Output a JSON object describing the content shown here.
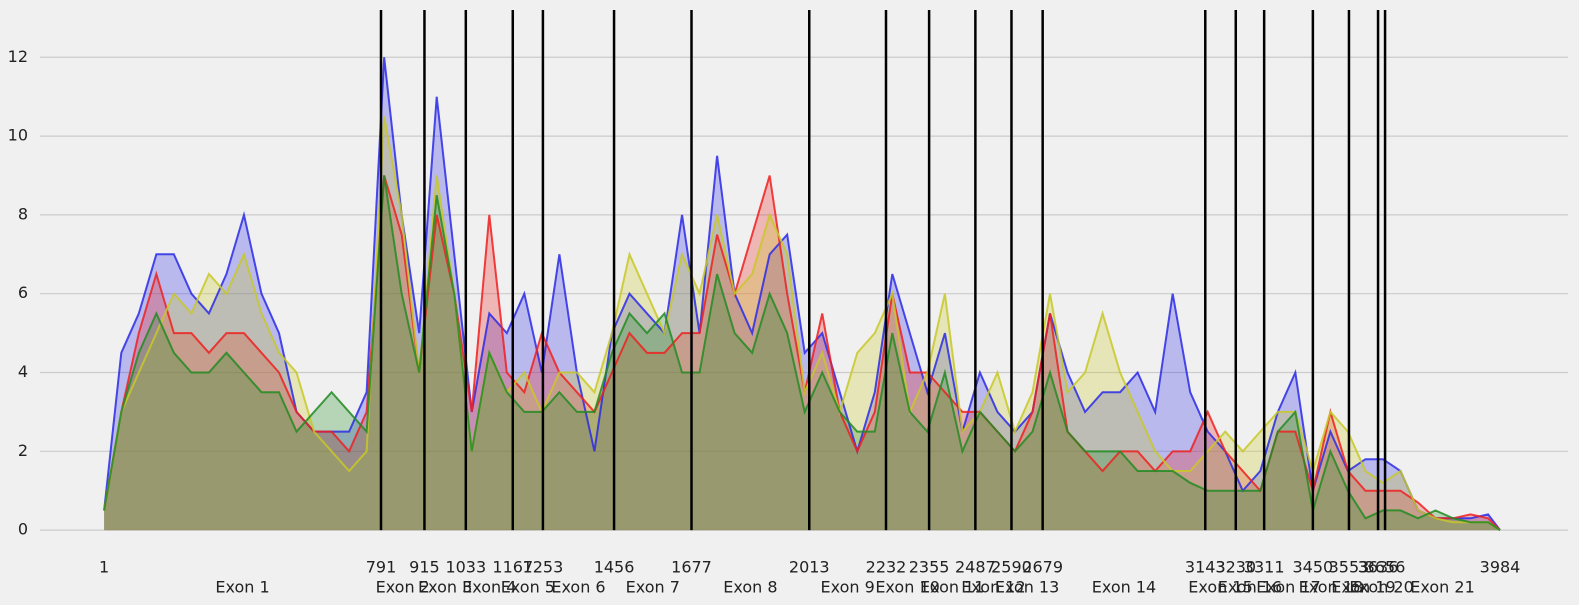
{
  "chart_data": {
    "type": "area",
    "x": [
      1,
      50,
      100,
      150,
      200,
      250,
      300,
      350,
      400,
      450,
      500,
      550,
      600,
      650,
      700,
      750,
      800,
      850,
      900,
      950,
      1000,
      1050,
      1100,
      1150,
      1200,
      1250,
      1300,
      1350,
      1400,
      1450,
      1500,
      1550,
      1600,
      1650,
      1700,
      1750,
      1800,
      1850,
      1900,
      1950,
      2000,
      2050,
      2100,
      2150,
      2200,
      2250,
      2300,
      2350,
      2400,
      2450,
      2500,
      2550,
      2600,
      2650,
      2700,
      2750,
      2800,
      2850,
      2900,
      2950,
      3000,
      3050,
      3100,
      3150,
      3200,
      3250,
      3300,
      3350,
      3400,
      3450,
      3500,
      3550,
      3600,
      3650,
      3700,
      3750,
      3800,
      3850,
      3900,
      3950,
      3984
    ],
    "series": [
      {
        "color": "#2a2ae8",
        "values": [
          0.5,
          4.5,
          5.5,
          7,
          7,
          6,
          5.5,
          6.5,
          8,
          6,
          5,
          3,
          2.5,
          2.5,
          2.5,
          3.5,
          12,
          8,
          5,
          11,
          7,
          3,
          5.5,
          5,
          6,
          4,
          7,
          4,
          2,
          5,
          6,
          5.5,
          5,
          8,
          5,
          9.5,
          6,
          5,
          7,
          7.5,
          4.5,
          5,
          3.5,
          2,
          3.5,
          6.5,
          5,
          3.5,
          5,
          2.5,
          4,
          3,
          2.5,
          3,
          5.5,
          4,
          3,
          3.5,
          3.5,
          4,
          3,
          6,
          3.5,
          2.5,
          2,
          1,
          1.5,
          3,
          4,
          1,
          2.5,
          1.5,
          1.8,
          1.8,
          1.5,
          0.5,
          0.3,
          0.3,
          0.3,
          0.4,
          0
        ]
      },
      {
        "color": "#ee2020",
        "values": [
          0.5,
          3,
          5,
          6.5,
          5,
          5,
          4.5,
          5,
          5,
          4.5,
          4,
          3,
          2.5,
          2.5,
          2,
          3,
          9,
          7.5,
          4,
          8,
          6,
          3,
          8,
          4,
          3.5,
          5,
          4,
          3.5,
          3,
          4,
          5,
          4.5,
          4.5,
          5,
          5,
          7.5,
          6,
          7.5,
          9,
          6,
          3.5,
          5.5,
          3,
          2,
          3,
          6,
          4,
          4,
          3.5,
          3,
          3,
          2.5,
          2,
          3,
          5.5,
          2.5,
          2,
          1.5,
          2,
          2,
          1.5,
          2,
          2,
          3,
          2,
          1.5,
          1,
          2.5,
          2.5,
          1,
          3,
          1.5,
          1,
          1,
          1,
          0.7,
          0.3,
          0.3,
          0.4,
          0.3,
          0
        ]
      },
      {
        "color": "#c8c828",
        "values": [
          0.5,
          3,
          4,
          5,
          6,
          5.5,
          6.5,
          6,
          7,
          5.5,
          4.5,
          4,
          2.5,
          2,
          1.5,
          2,
          10.5,
          8,
          4,
          9,
          6,
          2,
          4.5,
          3.5,
          4,
          3,
          4,
          4,
          3.5,
          5,
          7,
          6,
          5,
          7,
          6,
          8,
          6,
          6.5,
          8,
          7,
          3.5,
          4.5,
          3,
          4.5,
          5,
          6,
          3,
          4,
          6,
          2.5,
          3,
          4,
          2.5,
          3.5,
          6,
          3.5,
          4,
          5.5,
          4,
          3,
          2,
          1.5,
          1.5,
          2,
          2.5,
          2,
          2.5,
          3,
          3,
          1.5,
          3,
          2.5,
          1.5,
          1.2,
          1.5,
          0.5,
          0.3,
          0.2,
          0.2,
          0.2,
          0
        ]
      },
      {
        "color": "#228b22",
        "values": [
          0.5,
          3,
          4.5,
          5.5,
          4.5,
          4,
          4,
          4.5,
          4,
          3.5,
          3.5,
          2.5,
          3,
          3.5,
          3,
          2.5,
          9,
          6,
          4,
          8.5,
          6,
          2,
          4.5,
          3.5,
          3,
          3,
          3.5,
          3,
          3,
          4.5,
          5.5,
          5,
          5.5,
          4,
          4,
          6.5,
          5,
          4.5,
          6,
          5,
          3,
          4,
          3,
          2.5,
          2.5,
          5,
          3,
          2.5,
          4,
          2,
          3,
          2.5,
          2,
          2.5,
          4,
          2.5,
          2,
          2,
          2,
          1.5,
          1.5,
          1.5,
          1.2,
          1,
          1,
          1,
          1,
          2.5,
          3,
          0.5,
          2,
          1,
          0.3,
          0.5,
          0.5,
          0.3,
          0.5,
          0.3,
          0.2,
          0.2,
          0
        ]
      }
    ],
    "xlim": [
      -182,
      4178
    ],
    "xticks": [
      1,
      791,
      915,
      1033,
      1167,
      1253,
      1456,
      1677,
      2013,
      2232,
      2355,
      2487,
      2590,
      2679,
      3143,
      3230,
      3311,
      3450,
      3553,
      3636,
      3656,
      3984
    ],
    "exon_labels": [
      "Exon 1",
      "Exon 2",
      "Exon 3",
      "Exon 4",
      "Exon 5",
      "Exon 6",
      "Exon 7",
      "Exon 8",
      "Exon 9",
      "Exon 10",
      "Exon 11",
      "Exon 12",
      "Exon 13",
      "Exon 14",
      "Exon 15",
      "Exon 16",
      "Exon 17",
      "Exon 18",
      "Exon 19",
      "Exon 20",
      "Exon 21"
    ],
    "ylim": [
      -1.9,
      13.2
    ],
    "yticks": [
      0,
      2,
      4,
      6,
      8,
      10,
      12
    ],
    "grid": true
  }
}
